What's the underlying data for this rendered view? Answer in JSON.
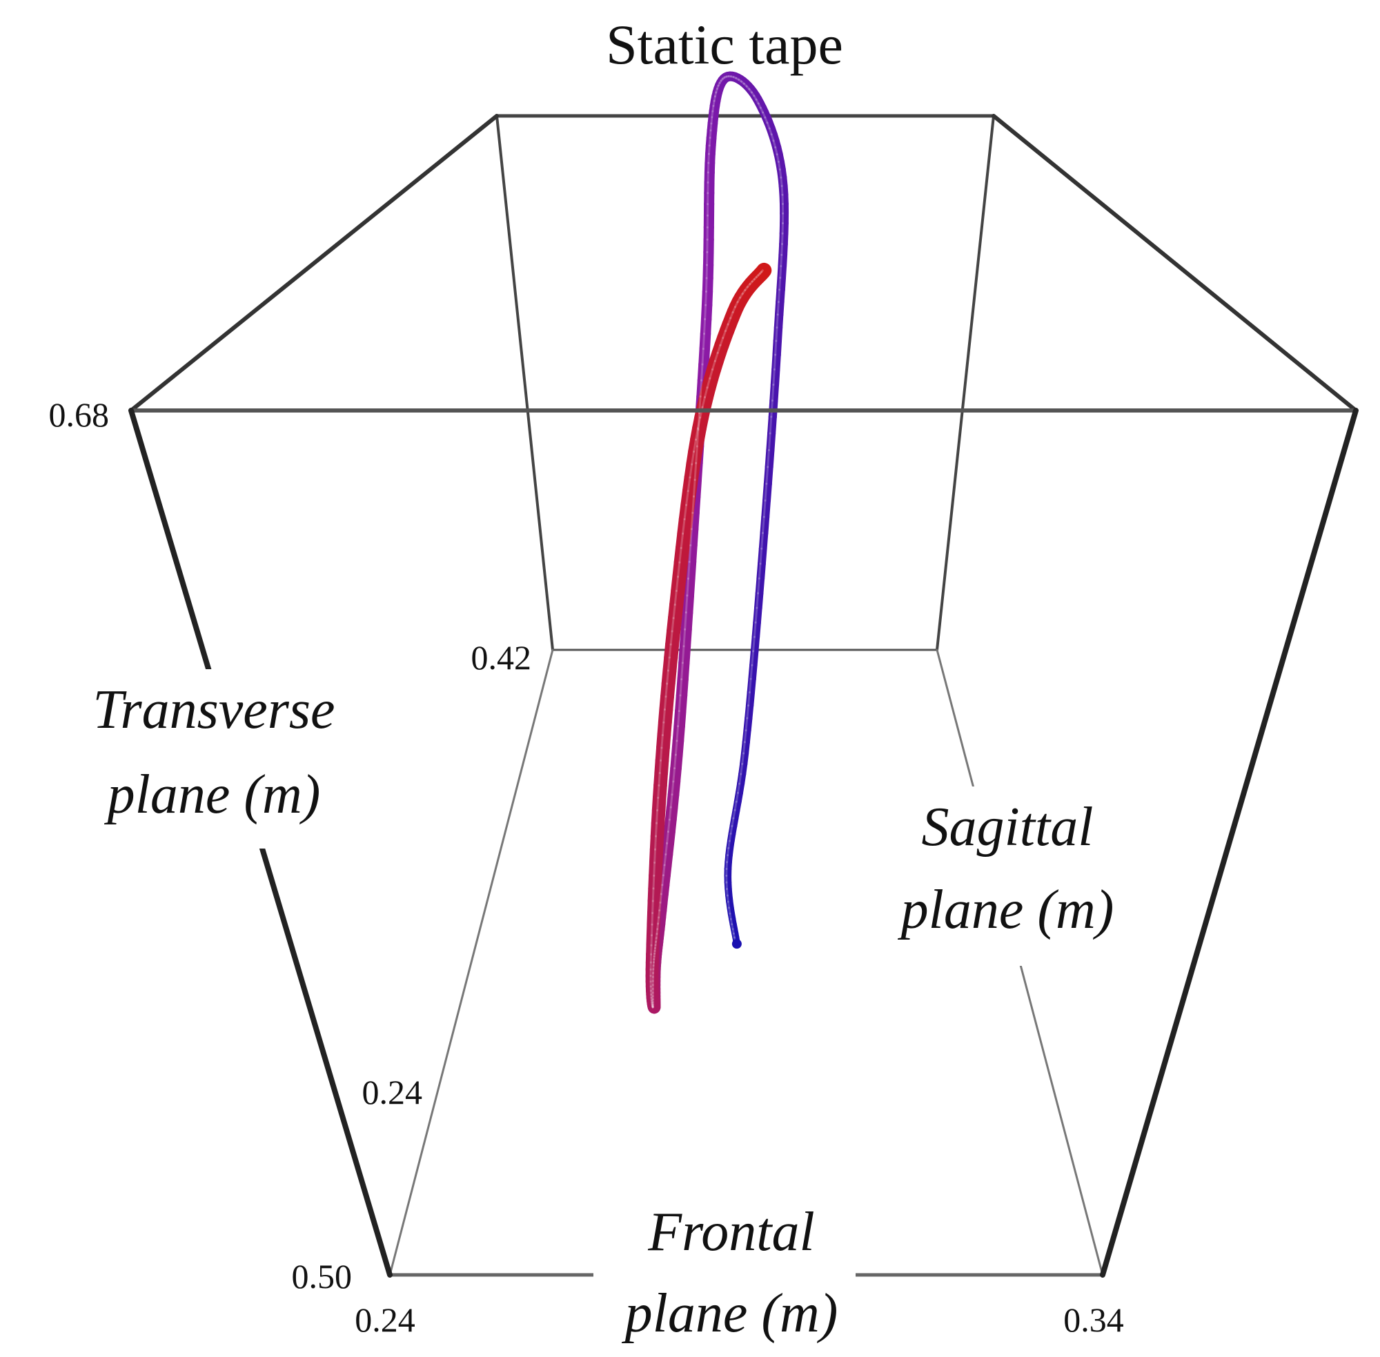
{
  "chart_data": {
    "type": "line-3d",
    "title": "Static tape",
    "axes": {
      "frontal": {
        "label_line1": "Frontal",
        "label_line2": "plane (m)",
        "ticks": [
          "0.24",
          "0.34"
        ]
      },
      "sagittal": {
        "label_line1": "Sagittal",
        "label_line2": "plane (m)",
        "ticks": [
          "0.24",
          "0.42"
        ]
      },
      "transverse": {
        "label_line1": "Transverse",
        "label_line2": "plane (m)",
        "ticks": [
          "0.50",
          "0.68"
        ]
      }
    },
    "grid": false,
    "box": true,
    "series": [
      {
        "color_start": "#1a10b0",
        "color_mid": "#8a1aa8",
        "color_end": "#d01818",
        "note": "single tube trajectory with color gradient from blue (start) through purple to red (end)",
        "points": [
          [
            0.289,
            0.255,
            0.56
          ],
          [
            0.288,
            0.262,
            0.572
          ],
          [
            0.29,
            0.275,
            0.59
          ],
          [
            0.292,
            0.3,
            0.62
          ],
          [
            0.294,
            0.33,
            0.66
          ],
          [
            0.295,
            0.355,
            0.69
          ],
          [
            0.292,
            0.39,
            0.7
          ],
          [
            0.286,
            0.415,
            0.695
          ],
          [
            0.283,
            0.42,
            0.67
          ],
          [
            0.282,
            0.415,
            0.62
          ],
          [
            0.279,
            0.4,
            0.56
          ],
          [
            0.275,
            0.385,
            0.505
          ],
          [
            0.271,
            0.37,
            0.475
          ],
          [
            0.27,
            0.36,
            0.47
          ],
          [
            0.271,
            0.345,
            0.474
          ],
          [
            0.273,
            0.33,
            0.5
          ],
          [
            0.277,
            0.32,
            0.55
          ],
          [
            0.281,
            0.312,
            0.6
          ],
          [
            0.285,
            0.305,
            0.65
          ],
          [
            0.289,
            0.3,
            0.68
          ],
          [
            0.292,
            0.3,
            0.69
          ]
        ]
      }
    ]
  }
}
